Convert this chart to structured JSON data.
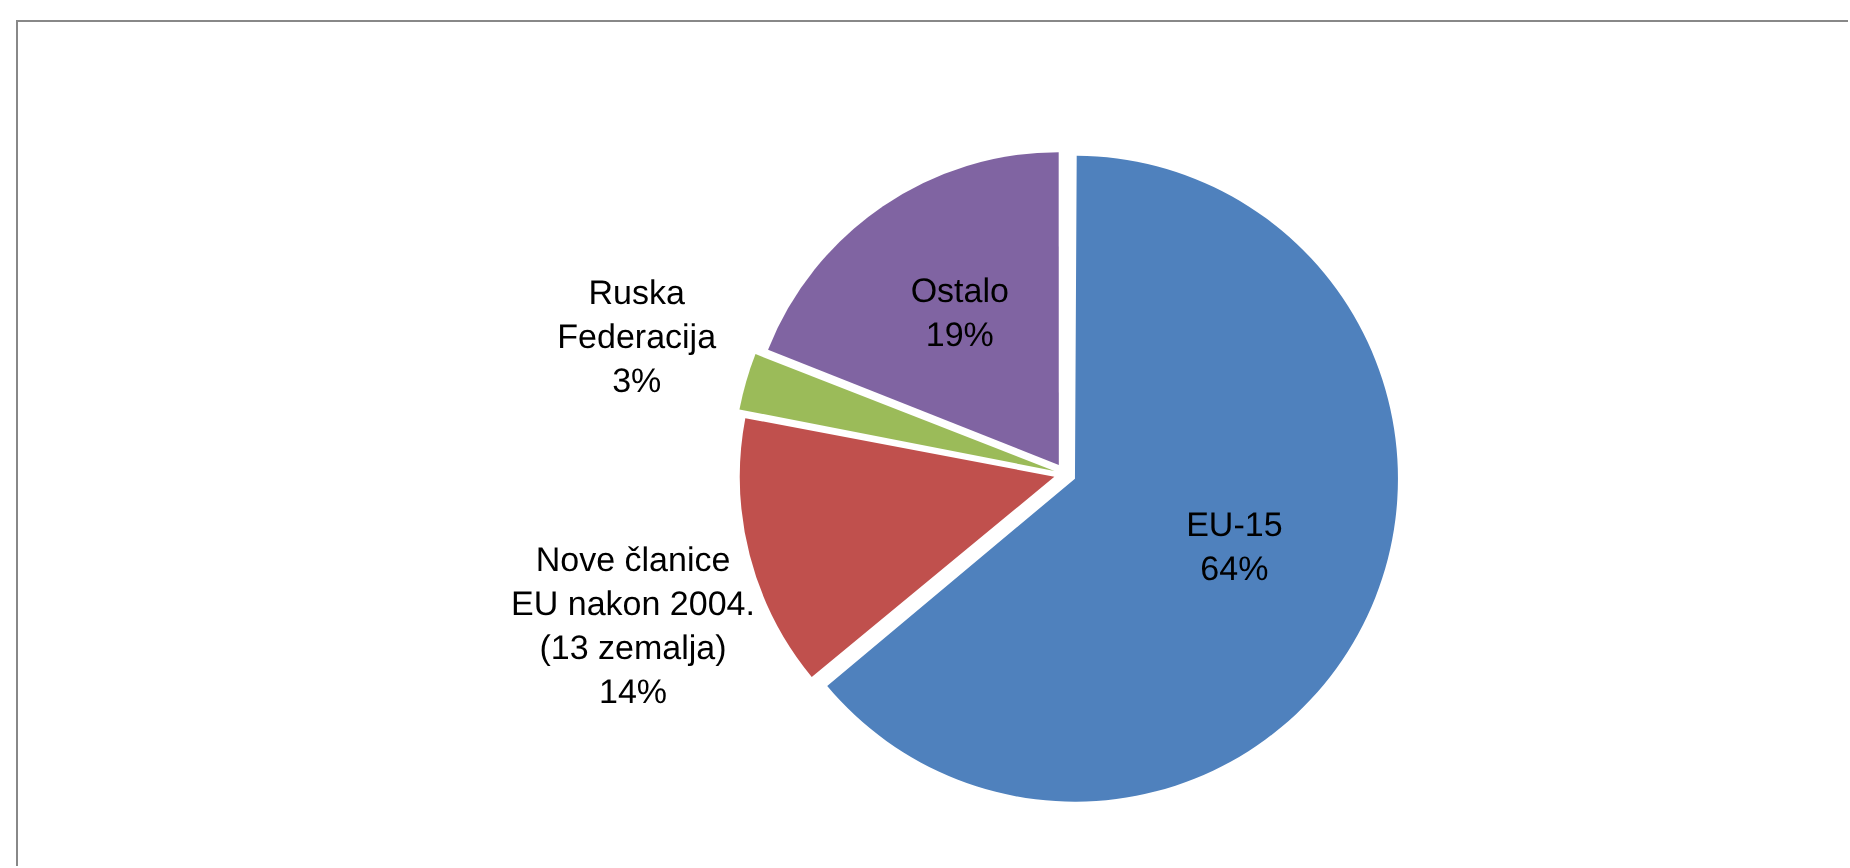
{
  "chart_data": {
    "type": "pie",
    "categories": [
      "EU-15",
      "Nove članice EU nakon 2004. (13 zemalja)",
      "Ruska Federacija",
      "Ostalo"
    ],
    "values": [
      64,
      14,
      3,
      19
    ],
    "value_labels": [
      "64%",
      "14%",
      "3%",
      "19%"
    ],
    "colors": [
      "#4f81bd",
      "#c0504d",
      "#9bbb59",
      "#8064a2"
    ],
    "legend": false
  }
}
